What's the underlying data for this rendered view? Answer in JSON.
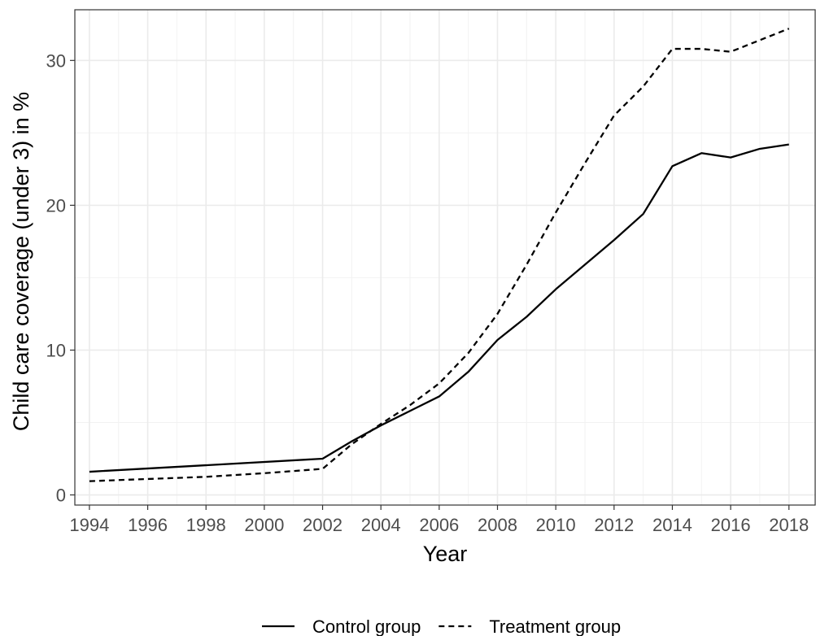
{
  "chart_data": {
    "type": "line",
    "title": "",
    "xlabel": "Year",
    "ylabel": "Child care coverage (under 3) in %",
    "xlim": [
      1993.5,
      2018.9
    ],
    "ylim": [
      -0.7,
      33.5
    ],
    "x_ticks": [
      1994,
      1996,
      1998,
      2000,
      2002,
      2004,
      2006,
      2008,
      2010,
      2012,
      2014,
      2016,
      2018
    ],
    "x_tick_labels": [
      "1994",
      "1996",
      "1998",
      "2000",
      "2002",
      "2004",
      "2006",
      "2008",
      "2010",
      "2012",
      "2014",
      "2016",
      "2018"
    ],
    "y_ticks": [
      0,
      10,
      20,
      30
    ],
    "y_tick_labels": [
      "0",
      "10",
      "20",
      "30"
    ],
    "grid": true,
    "legend_position": "bottom",
    "series": [
      {
        "name": "Control group",
        "line_style": "solid",
        "color": "#000000",
        "x": [
          1994,
          2002,
          2003,
          2004,
          2005,
          2006,
          2007,
          2008,
          2009,
          2010,
          2011,
          2012,
          2013,
          2014,
          2015,
          2016,
          2017,
          2018
        ],
        "values": [
          1.6,
          2.5,
          3.7,
          4.8,
          5.8,
          6.8,
          8.5,
          10.7,
          12.3,
          14.2,
          15.9,
          17.6,
          19.4,
          22.7,
          23.6,
          23.3,
          23.9,
          24.2
        ]
      },
      {
        "name": "Treatment group",
        "line_style": "dashed",
        "color": "#000000",
        "x": [
          1994,
          1996,
          1998,
          2000,
          2002,
          2003,
          2004,
          2005,
          2006,
          2007,
          2008,
          2009,
          2010,
          2011,
          2012,
          2013,
          2014,
          2015,
          2016,
          2017,
          2018
        ],
        "values": [
          0.95,
          1.1,
          1.25,
          1.5,
          1.8,
          3.5,
          4.9,
          6.2,
          7.7,
          9.8,
          12.5,
          15.9,
          19.5,
          22.9,
          26.2,
          28.2,
          30.8,
          30.8,
          30.6,
          31.4,
          32.2
        ]
      }
    ]
  }
}
